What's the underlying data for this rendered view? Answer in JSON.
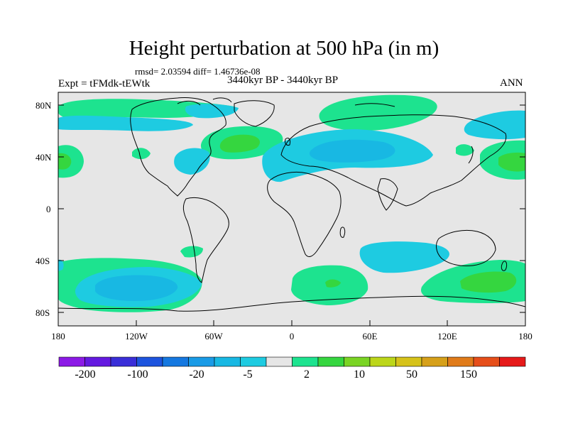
{
  "title": "Height perturbation at 500 hPa (in m)",
  "stats": "rmsd= 2.03594 diff= 1.46736e-08",
  "period": "3440kyr BP - 3440kyr BP",
  "experiment": "Expt = tFMdk-tEWtk",
  "season": "ANN",
  "lat_labels": [
    "80N",
    "40N",
    "0",
    "40S",
    "80S"
  ],
  "lon_labels": [
    "180",
    "120W",
    "60W",
    "0",
    "60E",
    "120E",
    "180"
  ],
  "colorbar": {
    "labels": [
      "-200",
      "-100",
      "-20",
      "-5",
      "2",
      "10",
      "50",
      "150"
    ],
    "colors": [
      "#8c1ae6",
      "#6419e0",
      "#3a2ed8",
      "#1d54de",
      "#1578e0",
      "#1a9be6",
      "#18b8e3",
      "#1ecbe1",
      "#e6e6e6",
      "#1de38f",
      "#35d63f",
      "#7ad424",
      "#bcd61a",
      "#d6c21a",
      "#d6a01a",
      "#e07b1a",
      "#e64e1a",
      "#e61a1a"
    ]
  },
  "colors": {
    "land_background": "#e6e6e6",
    "light_blue": "#1ecbe1",
    "mid_blue": "#18b8e3",
    "green": "#1de38f",
    "deep_green": "#35d63f",
    "coastline": "#000000"
  }
}
